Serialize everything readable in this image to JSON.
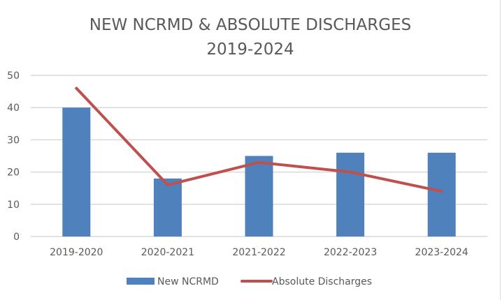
{
  "chart_data": {
    "type": "bar",
    "title": "NEW NCRMD & ABSOLUTE DISCHARGES",
    "subtitle": "2019-2024",
    "xlabel": "",
    "ylabel": "",
    "categories": [
      "2019-2020",
      "2020-2021",
      "2021-2022",
      "2022-2023",
      "2023-2024"
    ],
    "ylim": [
      0,
      50
    ],
    "yticks": [
      "0",
      "10",
      "20",
      "30",
      "40",
      "50"
    ],
    "grid": true,
    "legend_position": "bottom",
    "series": [
      {
        "name": "New NCRMD",
        "type": "bar",
        "color": "#4f81bd",
        "values": [
          40,
          18,
          25,
          26,
          26
        ]
      },
      {
        "name": "Absolute Discharges",
        "type": "line",
        "color": "#c0504d",
        "values": [
          46,
          16,
          23,
          20,
          14
        ]
      }
    ]
  }
}
